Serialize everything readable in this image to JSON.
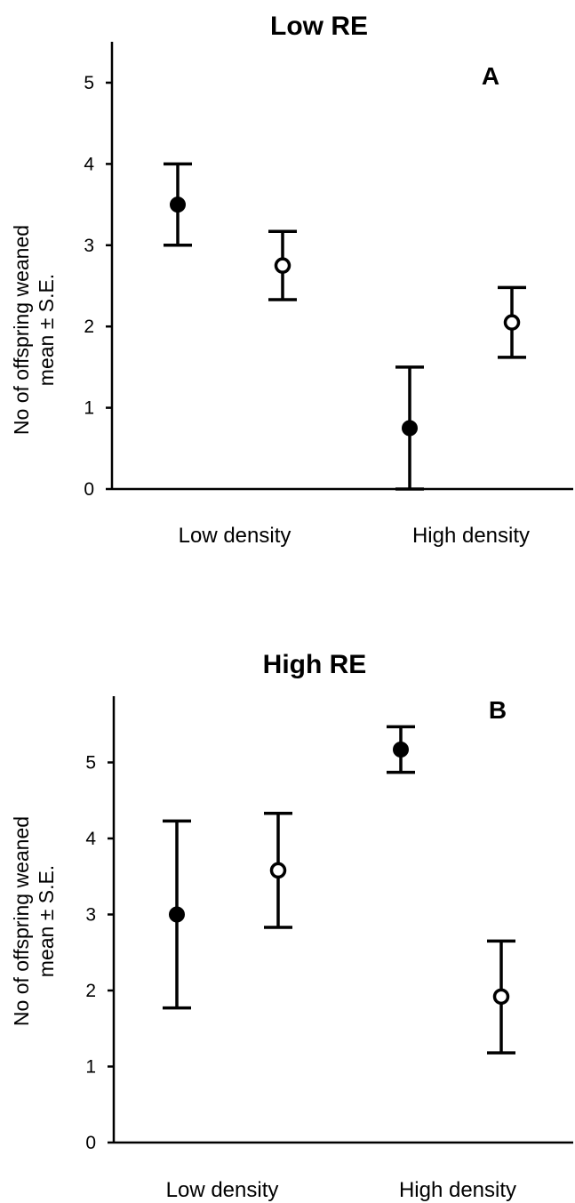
{
  "chart_data": [
    {
      "type": "scatter",
      "title": "Low RE",
      "panel_label": "A",
      "ylabel_lines": [
        "No of offspring weaned",
        "mean ± S.E."
      ],
      "xlabel": "",
      "categories": [
        "Low density",
        "High density"
      ],
      "ylim": [
        0,
        5.5
      ],
      "yticks": [
        "0",
        "1",
        "2",
        "3",
        "4",
        "5"
      ],
      "series": [
        {
          "marker": "filled",
          "mean": [
            3.5,
            0.75
          ],
          "lower": [
            3.0,
            0.0
          ],
          "upper": [
            4.0,
            1.5
          ]
        },
        {
          "marker": "open",
          "mean": [
            2.75,
            2.05
          ],
          "lower": [
            2.33,
            1.62
          ],
          "upper": [
            3.17,
            2.48
          ]
        }
      ]
    },
    {
      "type": "scatter",
      "title": "High RE",
      "panel_label": "B",
      "ylabel_lines": [
        "No of offspring weaned",
        "mean ± S.E."
      ],
      "xlabel": "",
      "categories": [
        "Low density",
        "High density"
      ],
      "ylim": [
        0,
        5.5
      ],
      "yticks": [
        "0",
        "1",
        "2",
        "3",
        "4",
        "5"
      ],
      "series": [
        {
          "marker": "filled",
          "mean": [
            3.0,
            5.17
          ],
          "lower": [
            1.77,
            4.87
          ],
          "upper": [
            4.23,
            5.47
          ]
        },
        {
          "marker": "open",
          "mean": [
            3.58,
            1.92
          ],
          "lower": [
            2.83,
            1.18
          ],
          "upper": [
            4.33,
            2.65
          ]
        }
      ]
    }
  ]
}
